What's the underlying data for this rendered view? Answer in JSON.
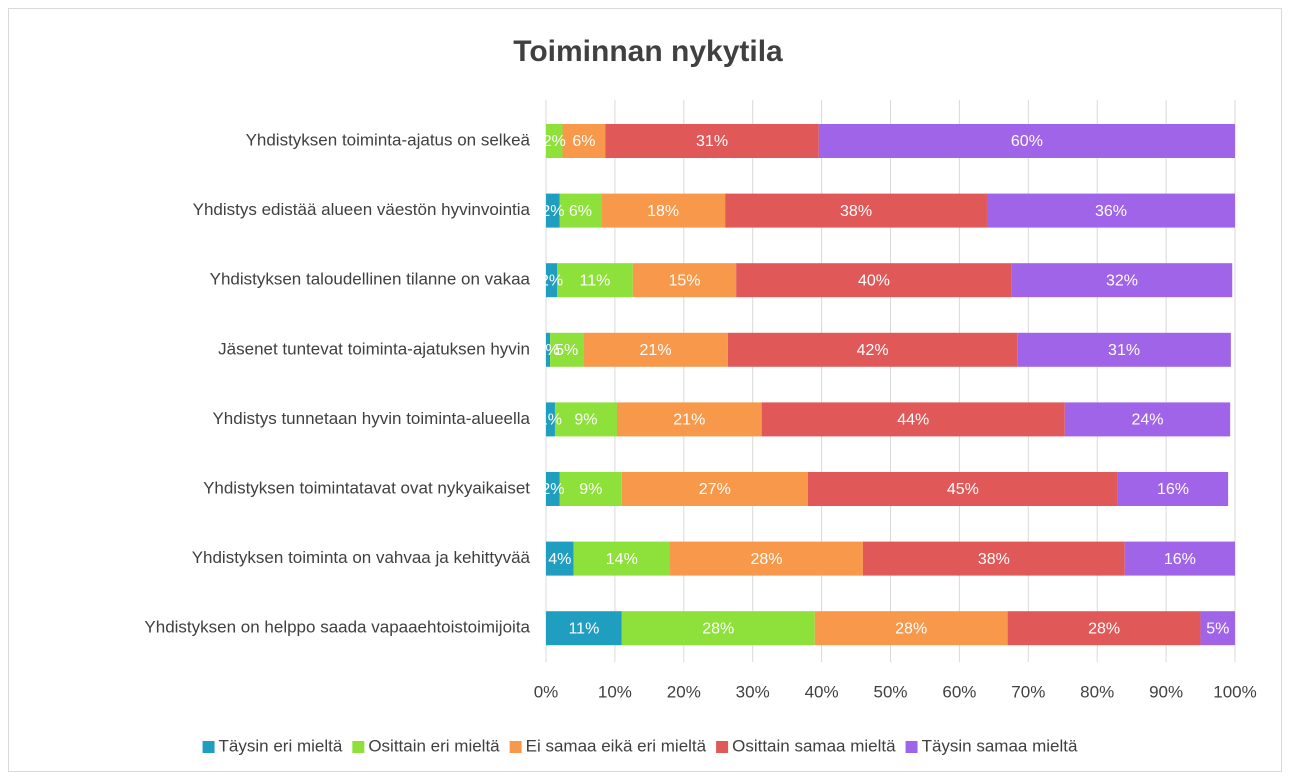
{
  "chart_data": {
    "type": "stacked_bar_horizontal",
    "title": "Toiminnan nykytila",
    "categories": [
      "Yhdistyksen toiminta-ajatus on selkeä",
      "Yhdistys edistää alueen väestön hyvinvointia",
      "Yhdistyksen taloudellinen tilanne on vakaa",
      "Jäsenet tuntevat toiminta-ajatuksen hyvin",
      "Yhdistys tunnetaan hyvin toiminta-alueella",
      "Yhdistyksen toimintatavat ovat nykyaikaiset",
      "Yhdistyksen toiminta on vahvaa ja kehittyvää",
      "Yhdistyksen on helppo saada vapaaehtoistoimijoita"
    ],
    "series": [
      {
        "name": "Täysin eri mieltä",
        "color": "#1f9ec0",
        "values": [
          0,
          2,
          1.6,
          0.6,
          1.3,
          2,
          4,
          11
        ],
        "value_labels": [
          null,
          "2%",
          "2%",
          "1%",
          "1%",
          "2%",
          "4%",
          "11%"
        ]
      },
      {
        "name": "Osittain eri mieltä",
        "color": "#8ee03a",
        "values": [
          2.4,
          6,
          11,
          4.8,
          9,
          9,
          14,
          28
        ],
        "value_labels": [
          "2%",
          "6%",
          "11%",
          "5%",
          "9%",
          "9%",
          "14%",
          "28%"
        ]
      },
      {
        "name": "Ei samaa eikä eri mieltä",
        "color": "#f7984a",
        "values": [
          6.2,
          18,
          15,
          21,
          21,
          27,
          28,
          28
        ],
        "value_labels": [
          "6%",
          "18%",
          "15%",
          "21%",
          "21%",
          "27%",
          "28%",
          "28%"
        ]
      },
      {
        "name": "Osittain samaa mieltä",
        "color": "#e05858",
        "values": [
          31,
          38,
          40,
          42,
          44,
          45,
          38,
          28
        ],
        "value_labels": [
          "31%",
          "38%",
          "40%",
          "42%",
          "44%",
          "45%",
          "38%",
          "28%"
        ]
      },
      {
        "name": "Täysin samaa mieltä",
        "color": "#a064e8",
        "values": [
          60.4,
          36,
          32,
          31,
          24,
          16,
          16,
          5
        ],
        "value_labels": [
          "60%",
          "36%",
          "32%",
          "31%",
          "24%",
          "16%",
          "16%",
          "5%"
        ]
      }
    ],
    "xlim": [
      0,
      100
    ],
    "xticks": [
      {
        "value": 0,
        "label": "0%"
      },
      {
        "value": 10,
        "label": "10%"
      },
      {
        "value": 20,
        "label": "20%"
      },
      {
        "value": 30,
        "label": "30%"
      },
      {
        "value": 40,
        "label": "40%"
      },
      {
        "value": 50,
        "label": "50%"
      },
      {
        "value": 60,
        "label": "60%"
      },
      {
        "value": 70,
        "label": "70%"
      },
      {
        "value": 80,
        "label": "80%"
      },
      {
        "value": 90,
        "label": "90%"
      },
      {
        "value": 100,
        "label": "100%"
      }
    ],
    "grid": true,
    "legend": "bottom"
  }
}
